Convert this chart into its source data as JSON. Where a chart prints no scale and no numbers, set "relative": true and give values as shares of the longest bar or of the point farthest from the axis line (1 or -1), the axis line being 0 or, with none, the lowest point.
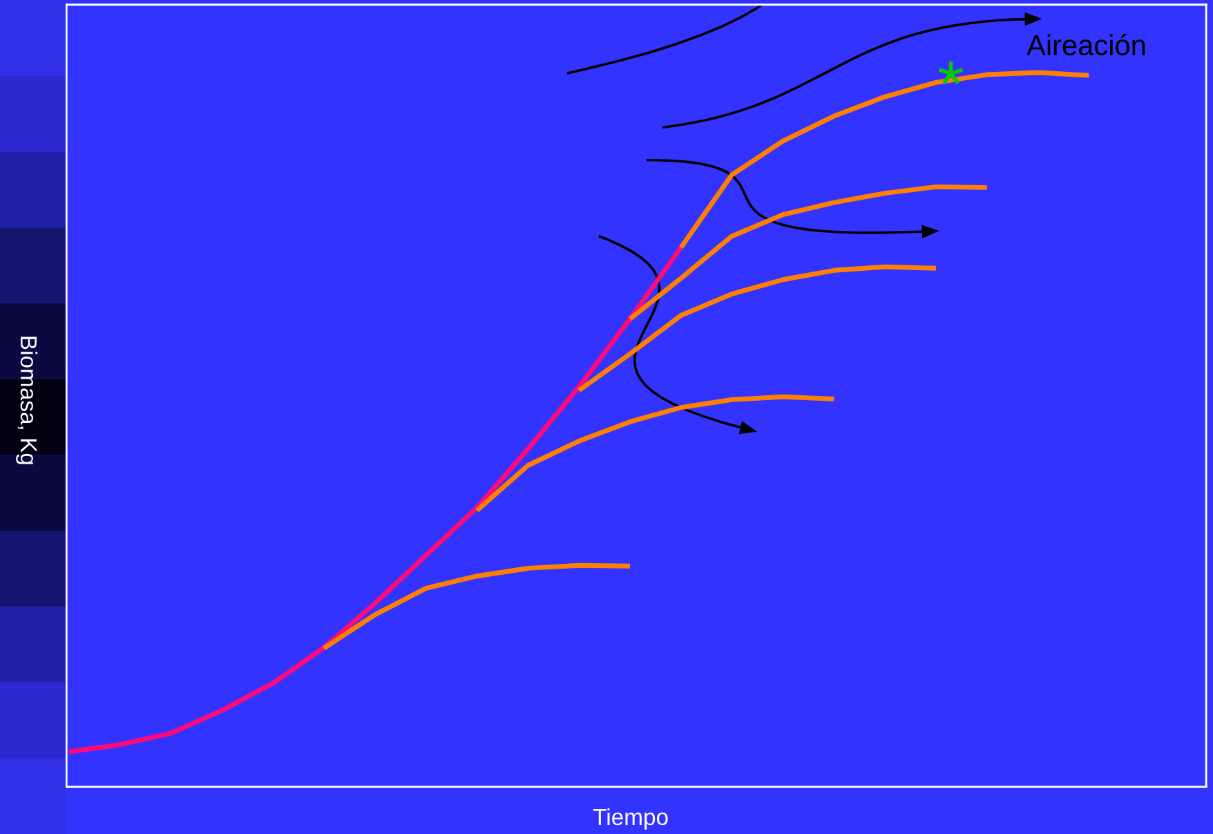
{
  "chart_data": {
    "type": "line",
    "relative": true,
    "xlabel": "Tiempo",
    "ylabel": "Biomasa, Kg",
    "annotations": [
      "Aireación"
    ],
    "legend": false,
    "grid": false,
    "line_style": "solid",
    "marker": "none",
    "categories": [
      null,
      null,
      null,
      null,
      null,
      null,
      null,
      null,
      null,
      null,
      null,
      null,
      null,
      null,
      null,
      null,
      null,
      null,
      null,
      null,
      null,
      null,
      null
    ],
    "series": [
      {
        "color": "#ff0a78",
        "values": [
          0.049,
          0.059,
          0.075,
          0.107,
          0.145,
          0.195,
          0.257,
          0.324,
          0.391,
          0.473,
          0.56,
          0.655,
          0.755,
          null,
          null,
          null,
          null,
          null,
          null,
          null,
          null,
          null,
          null
        ]
      },
      {
        "color": "#ff8000",
        "values": [
          null,
          null,
          null,
          null,
          null,
          0.194,
          0.241,
          0.278,
          0.295,
          0.306,
          0.31,
          0.309,
          null,
          null,
          null,
          null,
          null,
          null,
          null,
          null,
          null,
          null,
          null
        ]
      },
      {
        "color": "#ff8000",
        "values": [
          null,
          null,
          null,
          null,
          null,
          null,
          null,
          null,
          0.387,
          0.45,
          0.484,
          0.511,
          0.531,
          0.542,
          0.546,
          0.543,
          null,
          null,
          null,
          null,
          null,
          null,
          null
        ]
      },
      {
        "color": "#ff8000",
        "values": [
          null,
          null,
          null,
          null,
          null,
          null,
          null,
          null,
          null,
          null,
          0.555,
          0.606,
          0.66,
          0.69,
          0.71,
          0.723,
          0.728,
          0.726,
          null,
          null,
          null,
          null,
          null
        ]
      },
      {
        "color": "#ff8000",
        "values": [
          null,
          null,
          null,
          null,
          null,
          null,
          null,
          null,
          null,
          null,
          null,
          0.655,
          0.712,
          0.771,
          0.801,
          0.818,
          0.831,
          0.84,
          0.839,
          null,
          null,
          null,
          null
        ]
      },
      {
        "color": "#ff8000",
        "values": [
          null,
          null,
          null,
          null,
          null,
          null,
          null,
          null,
          null,
          null,
          null,
          null,
          0.755,
          0.857,
          0.904,
          0.939,
          0.966,
          0.986,
          0.997,
          1.0,
          0.996,
          null,
          null
        ]
      }
    ]
  }
}
